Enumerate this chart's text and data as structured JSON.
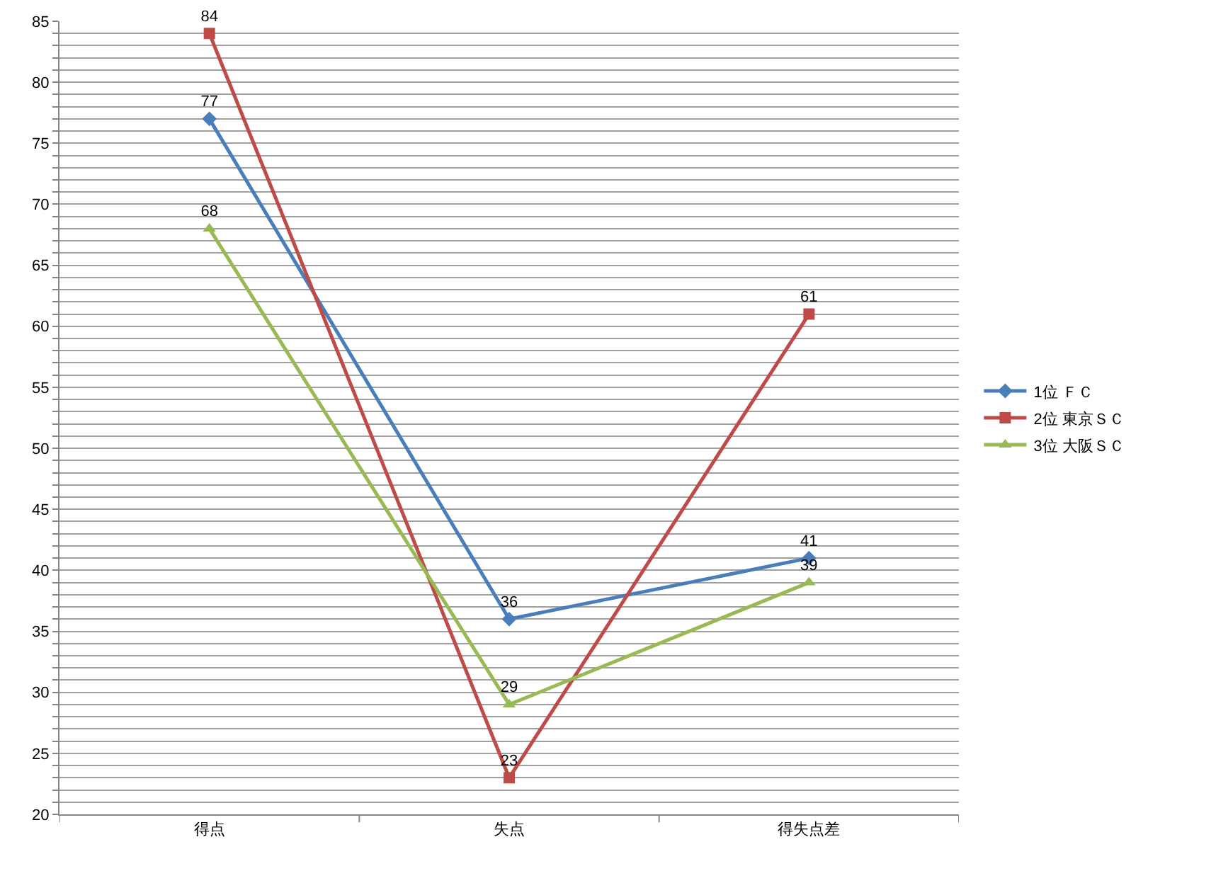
{
  "chart_data": {
    "type": "line",
    "categories": [
      "得点",
      "失点",
      "得失点差"
    ],
    "series": [
      {
        "name": "1位 ＦＣ",
        "color": "#4a7ebb",
        "marker": "diamond",
        "values": [
          77,
          36,
          41
        ]
      },
      {
        "name": "2位 東京ＳＣ",
        "color": "#be4b48",
        "marker": "square",
        "values": [
          84,
          23,
          61
        ]
      },
      {
        "name": "3位 大阪ＳＣ",
        "color": "#98b954",
        "marker": "triangle",
        "values": [
          68,
          29,
          39
        ]
      }
    ],
    "ylim": [
      20,
      85
    ],
    "yticks": [
      20,
      {
        "value": 21,
        "label": null
      },
      {
        "value": 22,
        "label": null
      },
      {
        "value": 23,
        "label": null
      },
      {
        "value": 24,
        "label": null
      },
      25,
      {
        "value": 26,
        "label": null
      },
      {
        "value": 27,
        "label": null
      },
      {
        "value": 28,
        "label": null
      },
      {
        "value": 29,
        "label": null
      },
      30,
      {
        "value": 31,
        "label": null
      },
      {
        "value": 32,
        "label": null
      },
      {
        "value": 33,
        "label": null
      },
      {
        "value": 34,
        "label": null
      },
      35,
      {
        "value": 36,
        "label": null
      },
      {
        "value": 37,
        "label": null
      },
      {
        "value": 38,
        "label": null
      },
      {
        "value": 39,
        "label": null
      },
      40,
      {
        "value": 41,
        "label": null
      },
      {
        "value": 42,
        "label": null
      },
      {
        "value": 43,
        "label": null
      },
      {
        "value": 44,
        "label": null
      },
      45,
      {
        "value": 46,
        "label": null
      },
      {
        "value": 47,
        "label": null
      },
      {
        "value": 48,
        "label": null
      },
      {
        "value": 49,
        "label": null
      },
      50,
      {
        "value": 51,
        "label": null
      },
      {
        "value": 52,
        "label": null
      },
      {
        "value": 53,
        "label": null
      },
      {
        "value": 54,
        "label": null
      },
      55,
      {
        "value": 56,
        "label": null
      },
      {
        "value": 57,
        "label": null
      },
      {
        "value": 58,
        "label": null
      },
      {
        "value": 59,
        "label": null
      },
      60,
      {
        "value": 61,
        "label": null
      },
      {
        "value": 62,
        "label": null
      },
      {
        "value": 63,
        "label": null
      },
      {
        "value": 64,
        "label": null
      },
      65,
      {
        "value": 66,
        "label": null
      },
      {
        "value": 67,
        "label": null
      },
      {
        "value": 68,
        "label": null
      },
      {
        "value": 69,
        "label": null
      },
      70,
      {
        "value": 71,
        "label": null
      },
      {
        "value": 72,
        "label": null
      },
      {
        "value": 73,
        "label": null
      },
      {
        "value": 74,
        "label": null
      },
      75,
      {
        "value": 76,
        "label": null
      },
      {
        "value": 77,
        "label": null
      },
      {
        "value": 78,
        "label": null
      },
      {
        "value": 79,
        "label": null
      },
      80,
      {
        "value": 81,
        "label": null
      },
      {
        "value": 82,
        "label": null
      },
      {
        "value": 83,
        "label": null
      },
      {
        "value": 84,
        "label": null
      },
      85
    ],
    "grid": "y",
    "legend": "right",
    "data_labels": true,
    "line_style": "solid"
  }
}
